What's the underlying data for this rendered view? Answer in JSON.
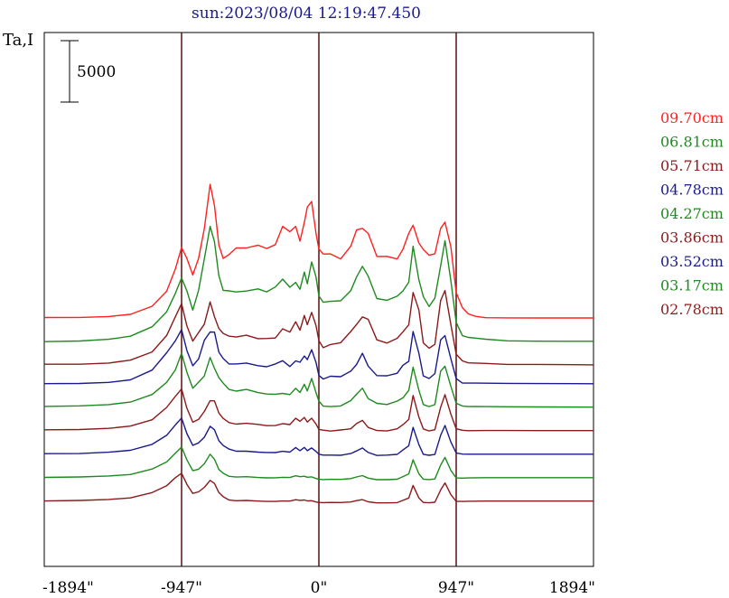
{
  "chart_data": {
    "type": "line",
    "title": "sun:2023/08/04 12:19:47.450",
    "ylabel": "Ta,I",
    "xlabel": "",
    "xlim": [
      -1894,
      1894
    ],
    "x_tick_labels": [
      "-1894\"",
      "-947\"",
      "0\"",
      "947\"",
      "1894\""
    ],
    "x_ticks": [
      -1894,
      -947,
      0,
      947,
      1894
    ],
    "vertical_markers": [
      -947,
      0,
      947
    ],
    "scale_bar_label": "5000",
    "scale_bar_value": 5000,
    "ylim": [
      0,
      57000
    ],
    "grid": false,
    "legend_placement": "right",
    "x": [
      -1894,
      -1650,
      -1450,
      -1300,
      -1150,
      -1050,
      -990,
      -947,
      -910,
      -870,
      -830,
      -790,
      -750,
      -720,
      -690,
      -660,
      -620,
      -570,
      -500,
      -420,
      -360,
      -300,
      -250,
      -200,
      -160,
      -130,
      -100,
      -80,
      -50,
      -20,
      0,
      30,
      80,
      150,
      220,
      260,
      300,
      340,
      400,
      470,
      540,
      580,
      620,
      650,
      690,
      720,
      760,
      800,
      840,
      870,
      910,
      947,
      990,
      1030,
      1080,
      1150,
      1300,
      1500,
      1894
    ],
    "series": [
      {
        "name": "09.70cm",
        "color": "#ff2020",
        "values": [
          3070,
          3080,
          3180,
          3410,
          4280,
          5880,
          8250,
          10550,
          9380,
          7610,
          9380,
          12550,
          17290,
          15040,
          10800,
          9380,
          9790,
          10500,
          10500,
          10800,
          10440,
          10850,
          12800,
          12230,
          12800,
          11230,
          13230,
          14870,
          15450,
          12060,
          10380,
          9850,
          9860,
          9330,
          10680,
          12420,
          12590,
          12050,
          9590,
          9600,
          9320,
          10360,
          12060,
          12930,
          11030,
          10340,
          9720,
          9880,
          12590,
          13260,
          10610,
          5730,
          4120,
          3470,
          3200,
          3050,
          3030,
          3020,
          3020
        ]
      },
      {
        "name": "06.81cm",
        "color": "#1f8a1f",
        "values": [
          3000,
          3060,
          3250,
          3570,
          4590,
          6180,
          8150,
          9800,
          8420,
          6360,
          8450,
          11840,
          15300,
          13670,
          10030,
          8470,
          8420,
          8300,
          8400,
          8630,
          8310,
          8830,
          9670,
          8800,
          9320,
          8590,
          10420,
          9180,
          11500,
          9920,
          7880,
          7200,
          7300,
          7360,
          8440,
          9890,
          11040,
          9990,
          7600,
          7410,
          7850,
          8420,
          9340,
          13180,
          9600,
          7810,
          6750,
          7640,
          11100,
          13780,
          9500,
          5050,
          3630,
          3450,
          3370,
          3260,
          3080,
          3040,
          3030
        ]
      },
      {
        "name": "05.71cm",
        "color": "#8b1a1a",
        "values": [
          3080,
          3080,
          3210,
          3520,
          4400,
          6150,
          8150,
          9550,
          7170,
          5550,
          6460,
          7370,
          9740,
          8170,
          6890,
          6370,
          6080,
          5990,
          6180,
          5810,
          5830,
          5880,
          6870,
          6520,
          7620,
          6720,
          8290,
          7310,
          8620,
          7210,
          5600,
          4850,
          5190,
          5380,
          6580,
          7330,
          8140,
          7880,
          5690,
          5340,
          5850,
          6550,
          7290,
          10740,
          8870,
          5360,
          4790,
          5210,
          9890,
          10950,
          7310,
          4160,
          3440,
          3230,
          3210,
          3170,
          3070,
          3070,
          3020
        ]
      },
      {
        "name": "04.78cm",
        "color": "#1a1a8b",
        "values": [
          3010,
          3030,
          3150,
          3420,
          4460,
          6310,
          7580,
          8780,
          6540,
          4920,
          5640,
          7640,
          8530,
          8510,
          6370,
          5690,
          5110,
          5110,
          5210,
          4930,
          4810,
          5110,
          5460,
          4830,
          5440,
          5300,
          5960,
          5580,
          6640,
          5280,
          3890,
          3500,
          3800,
          3750,
          4340,
          5060,
          6250,
          4880,
          3870,
          3850,
          4120,
          4980,
          5390,
          8580,
          6250,
          3840,
          3560,
          4080,
          7680,
          8140,
          5670,
          3550,
          3070,
          3070,
          3070,
          3060,
          3040,
          3020,
          3000
        ]
      },
      {
        "name": "04.27cm",
        "color": "#1f8a1f",
        "values": [
          3080,
          3140,
          3270,
          3540,
          4350,
          5650,
          6980,
          8750,
          6730,
          5020,
          5670,
          6330,
          8310,
          7140,
          6150,
          5560,
          4890,
          4710,
          4890,
          4560,
          4400,
          4380,
          4470,
          4340,
          5010,
          4570,
          5440,
          4740,
          6060,
          4560,
          3650,
          3110,
          3060,
          3130,
          3700,
          4380,
          5030,
          3910,
          3410,
          3280,
          3650,
          4000,
          4790,
          7270,
          4820,
          3280,
          3060,
          3270,
          6850,
          7370,
          5220,
          3420,
          3130,
          3060,
          3070,
          3060,
          3040,
          3020,
          3000
        ]
      },
      {
        "name": "03.86cm",
        "color": "#8b1a1a",
        "values": [
          3080,
          3110,
          3240,
          3480,
          4150,
          5470,
          6650,
          7440,
          5390,
          3890,
          4190,
          5040,
          6190,
          6170,
          4870,
          4300,
          3850,
          3690,
          3780,
          3660,
          3530,
          3540,
          3740,
          3640,
          4320,
          3990,
          4400,
          3910,
          4320,
          3710,
          3120,
          3040,
          2950,
          3060,
          3190,
          3750,
          4090,
          3330,
          3010,
          2960,
          3190,
          3630,
          4180,
          6750,
          4440,
          3180,
          2960,
          3090,
          5490,
          6830,
          4750,
          3190,
          3030,
          2990,
          3000,
          3010,
          3010,
          3000,
          3000
        ]
      },
      {
        "name": "03.52cm",
        "color": "#1a1a8b",
        "values": [
          3040,
          3050,
          3190,
          3390,
          4030,
          4990,
          6100,
          6840,
          5180,
          3920,
          4180,
          4790,
          5960,
          5590,
          4420,
          3900,
          3530,
          3300,
          3300,
          3200,
          3160,
          3150,
          3290,
          3200,
          3690,
          3350,
          3700,
          3350,
          3640,
          3280,
          2980,
          2880,
          2880,
          2860,
          3050,
          3330,
          3640,
          3160,
          2840,
          2880,
          2960,
          3430,
          3890,
          5840,
          4000,
          2970,
          2860,
          2950,
          4990,
          6050,
          4280,
          3110,
          2990,
          2980,
          2980,
          2980,
          2980,
          2980,
          2980
        ]
      },
      {
        "name": "03.17cm",
        "color": "#1f8a1f",
        "values": [
          3000,
          3050,
          3150,
          3310,
          3900,
          4650,
          5580,
          6240,
          4870,
          3710,
          3880,
          4460,
          5480,
          4940,
          3850,
          3440,
          3120,
          3040,
          3080,
          2990,
          2950,
          2960,
          3010,
          2990,
          3170,
          3080,
          3130,
          3020,
          3060,
          2880,
          2800,
          2770,
          2800,
          2790,
          2870,
          3050,
          3190,
          2920,
          2760,
          2760,
          2810,
          3090,
          3380,
          4880,
          3390,
          2820,
          2770,
          2840,
          4310,
          5140,
          3750,
          2940,
          2920,
          2940,
          2960,
          2970,
          2970,
          2970,
          2970
        ]
      },
      {
        "name": "02.78cm",
        "color": "#8b1a1a",
        "values": [
          2980,
          3040,
          3150,
          3310,
          3880,
          4610,
          5470,
          5940,
          4760,
          3790,
          3960,
          4440,
          5180,
          4850,
          3880,
          3440,
          3090,
          3010,
          3040,
          2970,
          2930,
          2930,
          2980,
          2970,
          3120,
          3050,
          3090,
          2990,
          3010,
          2880,
          2830,
          2810,
          2830,
          2820,
          2880,
          3020,
          3130,
          2900,
          2780,
          2780,
          2810,
          3050,
          3300,
          4640,
          3310,
          2830,
          2790,
          2850,
          4160,
          4910,
          3660,
          2940,
          2930,
          2950,
          2960,
          2970,
          2970,
          2970,
          2970
        ]
      }
    ],
    "offsets": [
      23500,
      21000,
      18500,
      16500,
      14000,
      11500,
      9000,
      6500,
      4000
    ]
  }
}
